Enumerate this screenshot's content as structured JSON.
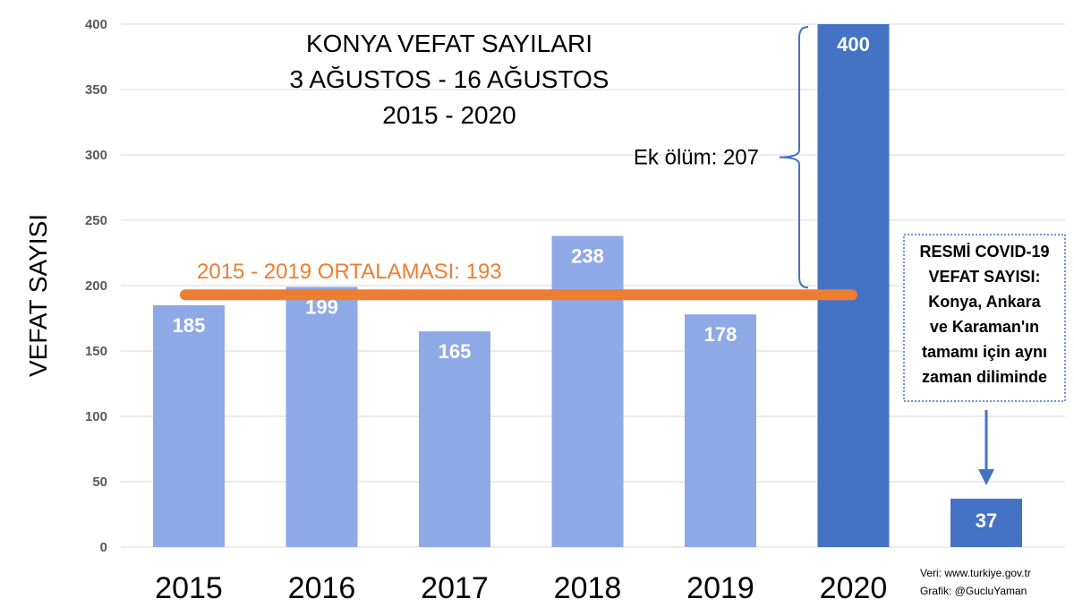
{
  "chart_data": {
    "type": "bar",
    "title_lines": [
      "KONYA VEFAT SAYILARI",
      "3 AĞUSTOS - 16 AĞUSTOS",
      "2015 - 2020"
    ],
    "ylabel": "VEFAT SAYISI",
    "xlabel": "",
    "ylim": [
      0,
      400
    ],
    "yticks": [
      0,
      50,
      100,
      150,
      200,
      250,
      300,
      350,
      400
    ],
    "grid": true,
    "categories": [
      "2015",
      "2016",
      "2017",
      "2018",
      "2019",
      "2020"
    ],
    "values": [
      185,
      199,
      165,
      238,
      178,
      400
    ],
    "colors": {
      "bar": "#8fa9e6",
      "highlight_bar": "#4472c4",
      "average_line": "#ed7d31",
      "bracket": "#4472c4",
      "grid": "#d9d9d9"
    },
    "average": {
      "label": "2015 - 2019 ORTALAMASI: 193",
      "value": 193
    },
    "excess": {
      "label": "Ek ölüm: 207",
      "value": 207
    },
    "covid": {
      "note_lines": [
        "RESMİ COVID-19",
        "VEFAT SAYISI:",
        "Konya, Ankara",
        "ve Karaman'ın",
        "tamamı için aynı",
        "zaman diliminde"
      ],
      "value": 37
    },
    "source_lines": [
      "Veri: www.turkiye.gov.tr",
      "Grafik: @GucluYaman"
    ]
  }
}
